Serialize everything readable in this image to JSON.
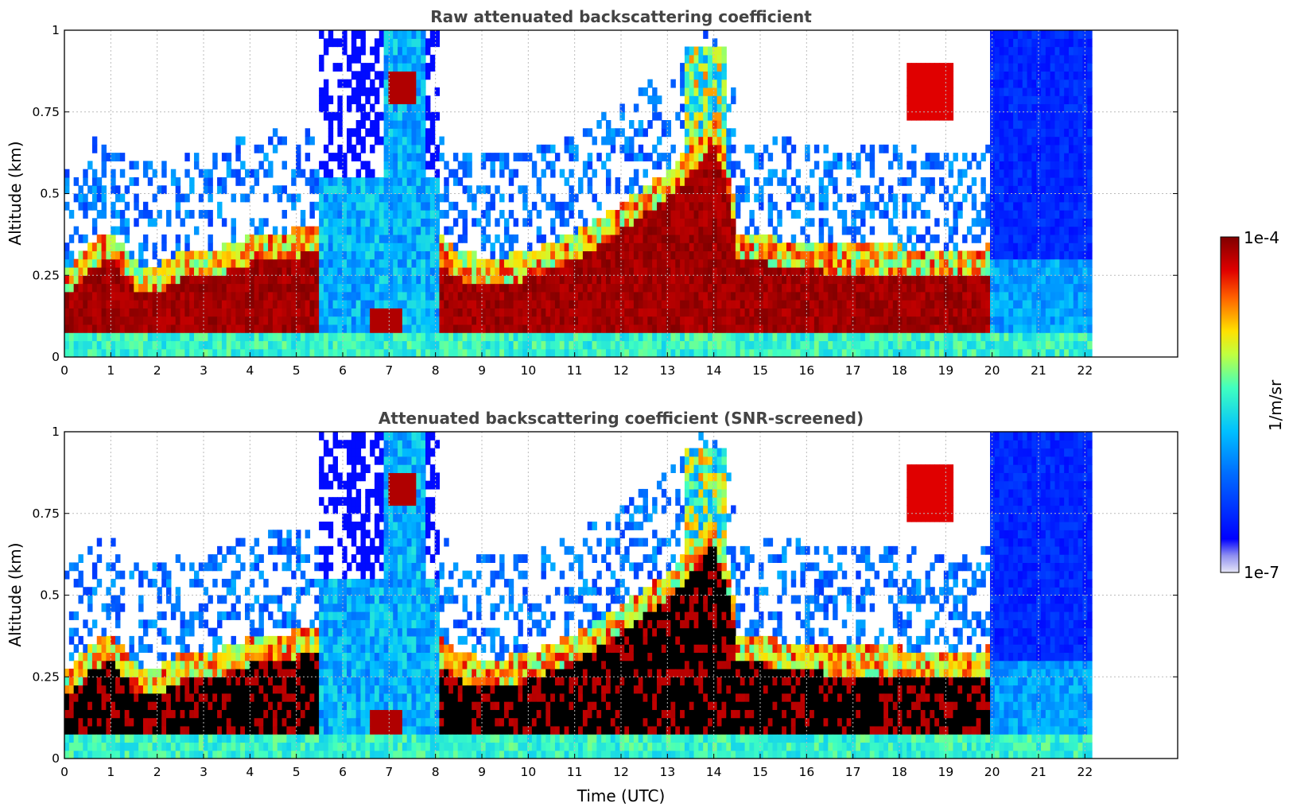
{
  "chart_data": [
    {
      "type": "heatmap",
      "title": "Raw attenuated backscattering coefficient",
      "ylabel": "Altitude (km)",
      "xlabel": "",
      "xlim": [
        0,
        24
      ],
      "ylim": [
        0,
        1
      ],
      "x_ticks": [
        "0",
        "1",
        "2",
        "3",
        "4",
        "5",
        "6",
        "7",
        "8",
        "9",
        "10",
        "11",
        "12",
        "13",
        "14",
        "15",
        "16",
        "17",
        "18",
        "19",
        "20",
        "21",
        "22"
      ],
      "y_ticks": [
        "0",
        "0.25",
        "0.5",
        "0.75",
        "1"
      ],
      "data_end_time": 22.15,
      "grid": true,
      "layer_top_km": [
        [
          0,
          0.22
        ],
        [
          0.5,
          0.3
        ],
        [
          1,
          0.35
        ],
        [
          1.5,
          0.25
        ],
        [
          2,
          0.24
        ],
        [
          2.5,
          0.28
        ],
        [
          3,
          0.28
        ],
        [
          3.5,
          0.3
        ],
        [
          4,
          0.33
        ],
        [
          4.5,
          0.34
        ],
        [
          5,
          0.35
        ],
        [
          5.45,
          0.36
        ],
        [
          8.1,
          0.33
        ],
        [
          8.5,
          0.28
        ],
        [
          9,
          0.27
        ],
        [
          9.5,
          0.27
        ],
        [
          10,
          0.28
        ],
        [
          10.5,
          0.31
        ],
        [
          11,
          0.34
        ],
        [
          11.5,
          0.38
        ],
        [
          12,
          0.43
        ],
        [
          12.5,
          0.48
        ],
        [
          13,
          0.53
        ],
        [
          13.5,
          0.6
        ],
        [
          14,
          0.7
        ],
        [
          14.4,
          0.5
        ],
        [
          14.5,
          0.33
        ],
        [
          15,
          0.33
        ],
        [
          15.5,
          0.32
        ],
        [
          16,
          0.31
        ],
        [
          16.5,
          0.3
        ],
        [
          17,
          0.3
        ],
        [
          17.5,
          0.3
        ],
        [
          18,
          0.3
        ],
        [
          18.5,
          0.28
        ],
        [
          19,
          0.28
        ],
        [
          19.5,
          0.28
        ],
        [
          19.9,
          0.3
        ]
      ],
      "colorbar": {
        "min_label": "1e-7",
        "max_label": "1e-4",
        "label": "1/m/sr",
        "scale": "log"
      }
    },
    {
      "type": "heatmap",
      "title": "Attenuated backscattering coefficient (SNR-screened)",
      "ylabel": "Altitude (km)",
      "xlabel": "Time (UTC)",
      "xlim": [
        0,
        24
      ],
      "ylim": [
        0,
        1
      ],
      "x_ticks": [
        "0",
        "1",
        "2",
        "3",
        "4",
        "5",
        "6",
        "7",
        "8",
        "9",
        "10",
        "11",
        "12",
        "13",
        "14",
        "15",
        "16",
        "17",
        "18",
        "19",
        "20",
        "21",
        "22"
      ],
      "y_ticks": [
        "0",
        "0.25",
        "0.5",
        "0.75",
        "1"
      ],
      "data_end_time": 22.15,
      "grid": true,
      "colorbar": {
        "min_label": "1e-7",
        "max_label": "1e-4",
        "label": "1/m/sr",
        "scale": "log"
      }
    }
  ],
  "colors": {
    "colormap": [
      "#e6e6f7",
      "#0000ff",
      "#0070ff",
      "#00c0ff",
      "#40ffc0",
      "#c0ff40",
      "#ffe000",
      "#ff6000",
      "#e00000",
      "#800000"
    ],
    "screened_saturation": "#000000",
    "title_color": "#444444"
  }
}
